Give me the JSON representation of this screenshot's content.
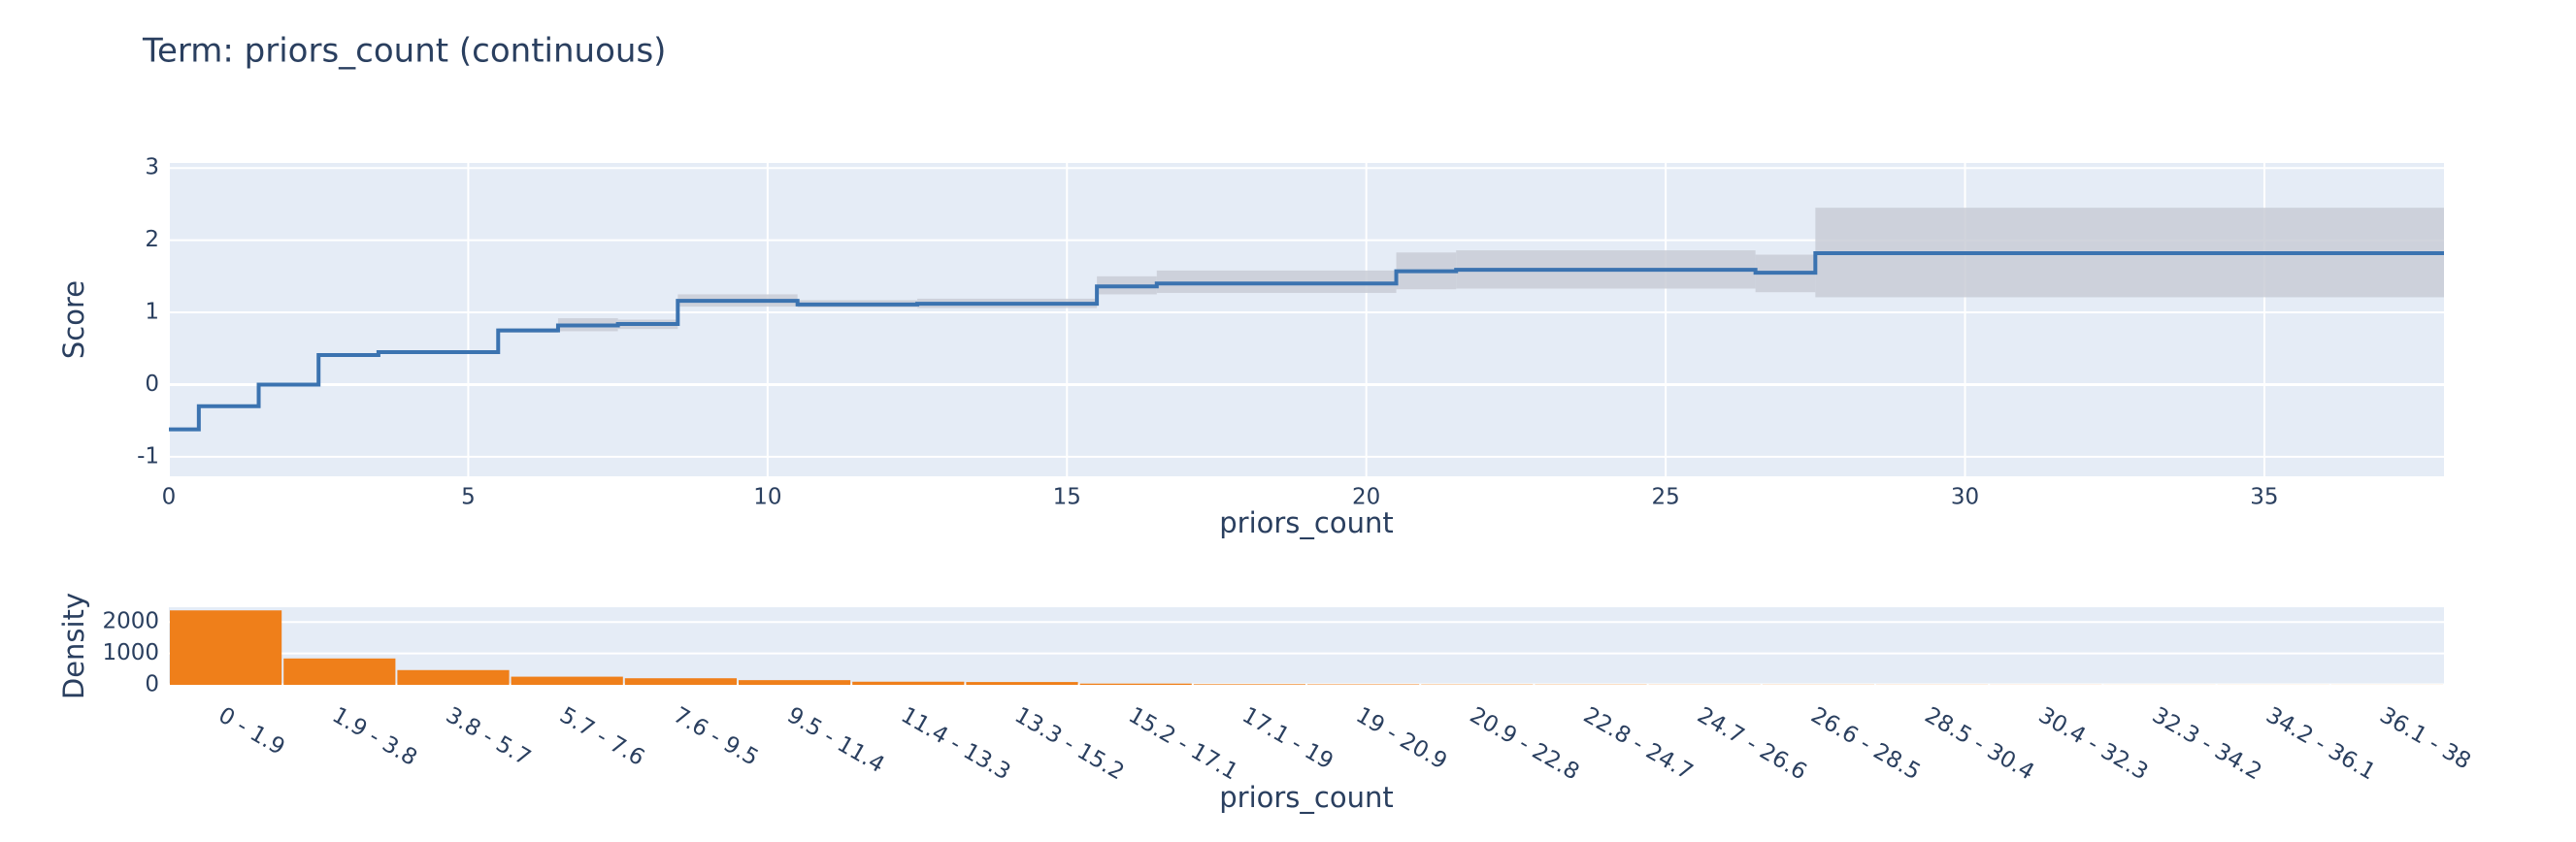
{
  "chart_data": [
    {
      "type": "line",
      "title": "Term: priors_count (continuous)",
      "line_shape": "hv",
      "x": [
        0,
        0.5,
        1.5,
        2.5,
        3.5,
        5.5,
        6.5,
        7.5,
        8.5,
        10.5,
        12.5,
        15.5,
        16.5,
        20.5,
        21.5,
        26.5,
        27.5,
        38
      ],
      "values": [
        -0.62,
        -0.3,
        0,
        0.41,
        0.45,
        0.75,
        0.82,
        0.84,
        1.16,
        1.11,
        1.12,
        1.36,
        1.4,
        1.57,
        1.59,
        1.55,
        1.82,
        1.82
      ],
      "lower": [
        -0.64,
        -0.32,
        -0.02,
        0.39,
        0.43,
        0.72,
        0.74,
        0.77,
        1.08,
        1.07,
        1.06,
        1.25,
        1.27,
        1.32,
        1.33,
        1.28,
        1.21,
        1.21
      ],
      "upper": [
        -0.6,
        -0.28,
        0.02,
        0.43,
        0.47,
        0.78,
        0.92,
        0.9,
        1.25,
        1.17,
        1.19,
        1.5,
        1.58,
        1.83,
        1.86,
        1.8,
        2.45,
        2.45
      ],
      "color": "#3b73b0",
      "band_color": "#c9ccd6",
      "xlabel": "priors_count",
      "ylabel": "Score",
      "xlim": [
        0,
        38
      ],
      "xticks": [
        0,
        5,
        10,
        15,
        20,
        25,
        30,
        35
      ],
      "ylim": [
        -1.27,
        3.07
      ],
      "yticks": [
        -1,
        0,
        1,
        2,
        3
      ],
      "grid": true
    },
    {
      "type": "bar",
      "categories": [
        "0 - 1.9",
        "1.9 - 3.8",
        "3.8 - 5.7",
        "5.7 - 7.6",
        "7.6 - 9.5",
        "9.5 - 11.4",
        "11.4 - 13.3",
        "13.3 - 15.2",
        "15.2 - 17.1",
        "17.1 - 19",
        "19 - 20.9",
        "20.9 - 22.8",
        "22.8 - 24.7",
        "24.7 - 26.6",
        "26.6 - 28.5",
        "28.5 - 30.4",
        "30.4 - 32.3",
        "32.3 - 34.2",
        "34.2 - 36.1",
        "36.1 - 38"
      ],
      "values": [
        2370,
        840,
        470,
        260,
        210,
        150,
        100,
        90,
        40,
        20,
        15,
        10,
        8,
        5,
        5,
        4,
        3,
        2,
        2,
        2
      ],
      "color": "#ef7f1a",
      "xlabel": "priors_count",
      "ylabel": "Density",
      "ylim": [
        0,
        2470
      ],
      "yticks": [
        0,
        1000,
        2000
      ],
      "grid": true
    }
  ]
}
